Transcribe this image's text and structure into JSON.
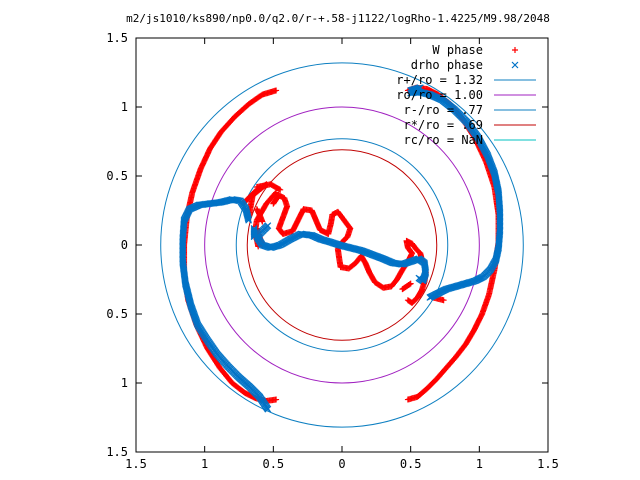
{
  "chart_data": {
    "type": "scatter",
    "title": "m2/js1010/ks890/np0.0/q2.0/r-+.58-j1122/logRho-1.4225/M9.98/2048",
    "xlabel": "",
    "ylabel": "",
    "xlim": [
      -1.5,
      1.5
    ],
    "ylim": [
      -1.5,
      1.5
    ],
    "x_ticks": [
      -1.5,
      -1,
      -0.5,
      0,
      0.5,
      1,
      1.5
    ],
    "y_ticks": [
      -1.5,
      -1,
      -0.5,
      0,
      0.5,
      1,
      1.5
    ],
    "x_tick_labels": [
      "1.5",
      "1",
      "0.5",
      "0",
      "0.5",
      "1",
      "1.5"
    ],
    "y_tick_labels": [
      "1.5",
      "1",
      "0.5",
      "0",
      "0.5",
      "1",
      "1.5"
    ],
    "grid": false,
    "legend_position": "top-right",
    "series": [
      {
        "name": "W phase",
        "kind": "points",
        "marker": "plus",
        "color": "#ff0000",
        "segments": [
          [
            [
              0.48,
              -1.12
            ],
            [
              0.55,
              -1.1
            ],
            [
              0.62,
              -1.04
            ],
            [
              0.69,
              -0.97
            ],
            [
              0.76,
              -0.89
            ],
            [
              0.83,
              -0.81
            ],
            [
              0.9,
              -0.72
            ],
            [
              0.96,
              -0.62
            ],
            [
              1.02,
              -0.5
            ],
            [
              1.07,
              -0.36
            ],
            [
              1.11,
              -0.18
            ],
            [
              1.14,
              0.02
            ],
            [
              1.14,
              0.22
            ],
            [
              1.11,
              0.42
            ],
            [
              1.05,
              0.6
            ],
            [
              0.97,
              0.77
            ],
            [
              0.88,
              0.91
            ],
            [
              0.79,
              1.02
            ],
            [
              0.7,
              1.09
            ],
            [
              0.62,
              1.13
            ],
            [
              0.54,
              1.14
            ],
            [
              0.48,
              1.12
            ]
          ],
          [
            [
              -0.48,
              1.12
            ],
            [
              -0.58,
              1.09
            ],
            [
              -0.68,
              1.02
            ],
            [
              -0.78,
              0.93
            ],
            [
              -0.88,
              0.82
            ],
            [
              -0.96,
              0.7
            ],
            [
              -1.03,
              0.55
            ],
            [
              -1.09,
              0.38
            ],
            [
              -1.13,
              0.2
            ],
            [
              -1.15,
              0.0
            ],
            [
              -1.15,
              -0.2
            ],
            [
              -1.12,
              -0.4
            ],
            [
              -1.06,
              -0.58
            ],
            [
              -0.98,
              -0.75
            ],
            [
              -0.89,
              -0.89
            ],
            [
              -0.8,
              -1.0
            ],
            [
              -0.71,
              -1.07
            ],
            [
              -0.63,
              -1.11
            ],
            [
              -0.55,
              -1.13
            ],
            [
              -0.48,
              -1.12
            ]
          ],
          [
            [
              -0.72,
              0.3
            ],
            [
              -0.62,
              0.4
            ],
            [
              -0.55,
              0.44
            ],
            [
              -0.65,
              0.36
            ],
            [
              -0.68,
              0.2
            ]
          ],
          [
            [
              -0.64,
              0.06
            ],
            [
              -0.62,
              0.18
            ],
            [
              -0.55,
              0.3
            ],
            [
              -0.48,
              0.38
            ]
          ],
          [
            [
              -0.62,
              0.42
            ],
            [
              -0.52,
              0.44
            ],
            [
              -0.45,
              0.4
            ]
          ],
          [
            [
              -0.62,
              0.26
            ],
            [
              -0.6,
              0.22
            ],
            [
              -0.58,
              0.17
            ]
          ],
          [
            [
              -0.63,
              0.08
            ],
            [
              -0.62,
              0.04
            ],
            [
              -0.61,
              -0.01
            ]
          ],
          [
            [
              -0.62,
              0.12
            ],
            [
              -0.6,
              0.06
            ],
            [
              -0.58,
              0.0
            ]
          ],
          [
            [
              -0.5,
              0.3
            ],
            [
              -0.46,
              0.36
            ],
            [
              -0.42,
              0.34
            ],
            [
              -0.4,
              0.28
            ],
            [
              -0.43,
              0.2
            ],
            [
              -0.46,
              0.12
            ],
            [
              -0.43,
              0.08
            ],
            [
              -0.36,
              0.1
            ],
            [
              -0.33,
              0.16
            ],
            [
              -0.3,
              0.22
            ],
            [
              -0.28,
              0.26
            ],
            [
              -0.22,
              0.25
            ],
            [
              -0.19,
              0.18
            ],
            [
              -0.16,
              0.11
            ],
            [
              -0.1,
              0.08
            ],
            [
              -0.08,
              0.16
            ],
            [
              -0.07,
              0.22
            ],
            [
              -0.03,
              0.24
            ],
            [
              0.0,
              0.2
            ],
            [
              0.03,
              0.16
            ],
            [
              0.06,
              0.12
            ],
            [
              0.04,
              0.06
            ],
            [
              0.0,
              0.02
            ],
            [
              -0.03,
              -0.03
            ],
            [
              -0.02,
              -0.1
            ],
            [
              -0.01,
              -0.16
            ],
            [
              0.05,
              -0.17
            ],
            [
              0.1,
              -0.13
            ],
            [
              0.14,
              -0.08
            ],
            [
              0.17,
              -0.13
            ],
            [
              0.2,
              -0.2
            ],
            [
              0.24,
              -0.27
            ],
            [
              0.3,
              -0.31
            ],
            [
              0.36,
              -0.3
            ],
            [
              0.4,
              -0.25
            ],
            [
              0.44,
              -0.18
            ],
            [
              0.48,
              -0.12
            ],
            [
              0.51,
              -0.06
            ],
            [
              0.48,
              -0.02
            ],
            [
              0.47,
              0.03
            ],
            [
              0.51,
              0.01
            ],
            [
              0.54,
              -0.03
            ],
            [
              0.57,
              -0.06
            ],
            [
              0.58,
              -0.1
            ],
            [
              0.6,
              -0.13
            ],
            [
              0.61,
              -0.2
            ],
            [
              0.6,
              -0.27
            ],
            [
              0.58,
              -0.33
            ],
            [
              0.55,
              -0.38
            ],
            [
              0.51,
              -0.42
            ],
            [
              0.48,
              -0.4
            ]
          ],
          [
            [
              0.44,
              -0.32
            ],
            [
              0.5,
              -0.28
            ]
          ],
          [
            [
              0.66,
              -0.38
            ],
            [
              0.74,
              -0.4
            ]
          ]
        ]
      },
      {
        "name": "drho phase",
        "kind": "points",
        "marker": "cross",
        "color": "#0072c6",
        "segments": [
          [
            [
              0.64,
              -0.38
            ],
            [
              0.7,
              -0.35
            ],
            [
              0.76,
              -0.32
            ],
            [
              0.83,
              -0.3
            ],
            [
              0.9,
              -0.28
            ],
            [
              0.97,
              -0.26
            ],
            [
              1.03,
              -0.23
            ],
            [
              1.08,
              -0.18
            ],
            [
              1.12,
              -0.11
            ],
            [
              1.14,
              -0.02
            ],
            [
              1.15,
              0.1
            ],
            [
              1.15,
              0.24
            ],
            [
              1.14,
              0.38
            ],
            [
              1.11,
              0.52
            ],
            [
              1.06,
              0.65
            ],
            [
              0.99,
              0.78
            ],
            [
              0.91,
              0.89
            ],
            [
              0.82,
              0.98
            ],
            [
              0.73,
              1.05
            ],
            [
              0.64,
              1.09
            ],
            [
              0.56,
              1.11
            ],
            [
              0.5,
              1.1
            ]
          ],
          [
            [
              0.57,
              1.14
            ],
            [
              0.5,
              1.12
            ]
          ],
          [
            [
              -0.54,
              -1.19
            ],
            [
              -0.6,
              -1.1
            ],
            [
              -0.67,
              -1.03
            ],
            [
              -0.75,
              -0.96
            ],
            [
              -0.83,
              -0.88
            ],
            [
              -0.91,
              -0.79
            ],
            [
              -0.98,
              -0.69
            ],
            [
              -1.05,
              -0.58
            ],
            [
              -1.1,
              -0.44
            ],
            [
              -1.14,
              -0.28
            ],
            [
              -1.16,
              -0.12
            ],
            [
              -1.16,
              0.04
            ],
            [
              -1.15,
              0.18
            ],
            [
              -1.11,
              0.26
            ],
            [
              -1.04,
              0.29
            ],
            [
              -0.96,
              0.3
            ],
            [
              -0.88,
              0.31
            ],
            [
              -0.8,
              0.33
            ],
            [
              -0.74,
              0.32
            ],
            [
              -0.7,
              0.26
            ],
            [
              -0.68,
              0.18
            ]
          ],
          [
            [
              -0.54,
              0.14
            ],
            [
              -0.58,
              0.1
            ],
            [
              -0.62,
              0.06
            ],
            [
              -0.58,
              0.0
            ],
            [
              -0.52,
              -0.02
            ],
            [
              -0.45,
              0.0
            ],
            [
              -0.38,
              0.04
            ],
            [
              -0.3,
              0.08
            ],
            [
              -0.22,
              0.07
            ],
            [
              -0.15,
              0.04
            ],
            [
              -0.08,
              0.02
            ],
            [
              -0.02,
              0.0
            ],
            [
              0.06,
              -0.02
            ],
            [
              0.14,
              -0.04
            ],
            [
              0.22,
              -0.07
            ],
            [
              0.3,
              -0.1
            ],
            [
              0.37,
              -0.13
            ],
            [
              0.44,
              -0.14
            ],
            [
              0.5,
              -0.12
            ],
            [
              0.56,
              -0.1
            ],
            [
              0.6,
              -0.13
            ],
            [
              0.61,
              -0.2
            ],
            [
              0.59,
              -0.26
            ],
            [
              0.56,
              -0.24
            ]
          ],
          [
            [
              -0.64,
              0.12
            ],
            [
              -0.64,
              0.06
            ]
          ]
        ]
      },
      {
        "name": "r+/ro = 1.32",
        "kind": "circle",
        "r": 1.32,
        "color": "#0d7fc1"
      },
      {
        "name": "ro/ro = 1.00",
        "kind": "circle",
        "r": 1.0,
        "color": "#a020c0"
      },
      {
        "name": "r-/ro = .77",
        "kind": "circle",
        "r": 0.77,
        "color": "#0d7fc1"
      },
      {
        "name": "r*/ro = .69",
        "kind": "circle",
        "r": 0.69,
        "color": "#c00000"
      },
      {
        "name": "rc/ro = NaN",
        "kind": "circle",
        "r": null,
        "color": "#00c0c0"
      }
    ]
  }
}
